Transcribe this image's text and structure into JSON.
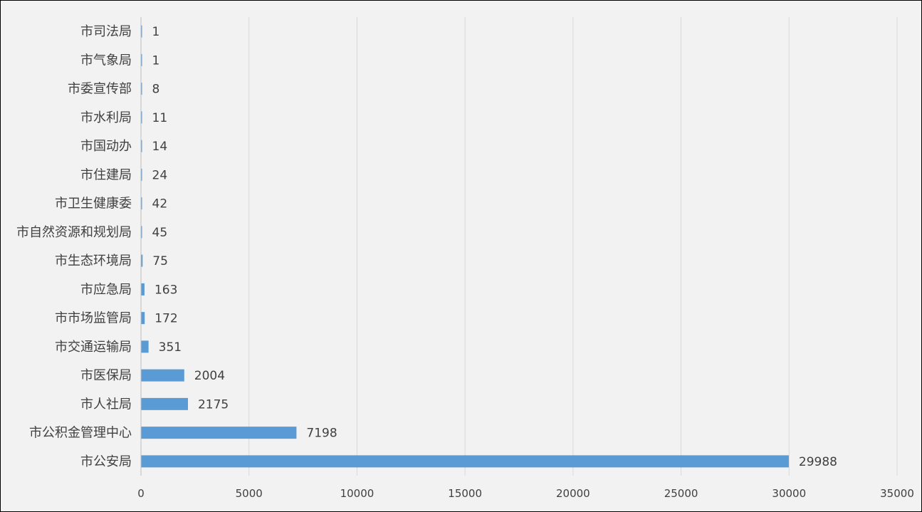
{
  "chart_data": {
    "type": "bar",
    "orientation": "horizontal",
    "title": "",
    "xlabel": "",
    "ylabel": "",
    "categories": [
      "市司法局",
      "市气象局",
      "市委宣传部",
      "市水利局",
      "市国动办",
      "市住建局",
      "市卫生健康委",
      "市自然资源和规划局",
      "市生态环境局",
      "市应急局",
      "市市场监管局",
      "市交通运输局",
      "市医保局",
      "市人社局",
      "市公积金管理中心",
      "市公安局"
    ],
    "values": [
      1,
      1,
      8,
      11,
      14,
      24,
      42,
      45,
      75,
      163,
      172,
      351,
      2004,
      2175,
      7198,
      29988
    ],
    "xlim": [
      0,
      35000
    ],
    "xticks": [
      0,
      5000,
      10000,
      15000,
      20000,
      25000,
      30000,
      35000
    ],
    "data_labels": true,
    "grid": "vertical",
    "legend": "none",
    "colors": {
      "bar": "#5b9bd5",
      "grid": "#d9d9d9",
      "axis": "#bfbfbf",
      "text": "#404040",
      "background": "#f2f2f2"
    }
  }
}
